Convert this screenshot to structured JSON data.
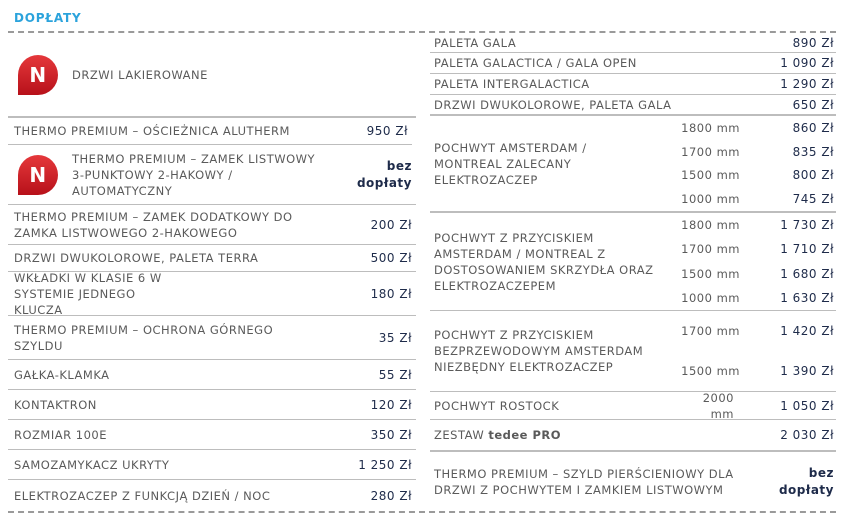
{
  "heading": "DOPŁATY",
  "left": [
    {
      "label": "DRZWI LAKIEROWANE",
      "icon": "N"
    },
    {
      "label": "THERMO PREMIUM – OŚCIEŻNICA ALUTHERM",
      "price": "950 Zł"
    },
    {
      "label": "THERMO PREMIUM – ZAMEK LISTWOWY 3-PUNKTOWY 2-HAKOWY / AUTOMATYCZNY",
      "icon": "N",
      "price": "bez dopłaty"
    },
    {
      "label": "THERMO PREMIUM – ZAMEK DODATKOWY DO ZAMKA LISTWOWEGO 2-HAKOWEGO",
      "price": "200 Zł"
    },
    {
      "label": "DRZWI DWUKOLOROWE, PALETA TERRA",
      "price": "500 Zł"
    },
    {
      "label": "WKŁADKI W KLASIE 6 W SYSTEMIE JEDNEGO KLUCZA",
      "price": "180 Zł"
    },
    {
      "label": "THERMO PREMIUM – OCHRONA GÓRNEGO SZYLDU",
      "price": "35 Zł"
    },
    {
      "label": "GAŁKA-KLAMKA",
      "price": "55 Zł"
    },
    {
      "label": "KONTAKTRON",
      "price": "120 Zł"
    },
    {
      "label": "ROZMIAR 100E",
      "price": "350 Zł"
    },
    {
      "label": "SAMOZAMYKACZ UKRYTY",
      "price": "1 250 Zł"
    },
    {
      "label": "ELEKTROZACZEP Z FUNKCJĄ DZIEŃ / NOC",
      "price": "280 Zł"
    }
  ],
  "right": [
    {
      "label": "PALETA GALA",
      "price": "890 Zł"
    },
    {
      "label": "PALETA GALACTICA / GALA OPEN",
      "price": "1 090 Zł"
    },
    {
      "label": "PALETA INTERGALACTICA",
      "price": "1 290 Zł"
    },
    {
      "label": "DRZWI DWUKOLOROWE, PALETA GALA",
      "price": "650 Zł"
    },
    {
      "label": "POCHWYT AMSTERDAM / MONTREAL ZALECANY ELEKTROZACZEP",
      "sizes": [
        {
          "mm": "1800 mm",
          "price": "860 Zł"
        },
        {
          "mm": "1700 mm",
          "price": "835 Zł"
        },
        {
          "mm": "1500 mm",
          "price": "800 Zł"
        },
        {
          "mm": "1000 mm",
          "price": "745 Zł"
        }
      ]
    },
    {
      "label": "POCHWYT Z PRZYCISKIEM AMSTERDAM / MONTREAL Z DOSTOSOWANIEM SKRZYDŁA ORAZ ELEKTROZACZEPEM",
      "sizes": [
        {
          "mm": "1800 mm",
          "price": "1 730 Zł"
        },
        {
          "mm": "1700 mm",
          "price": "1 710 Zł"
        },
        {
          "mm": "1500 mm",
          "price": "1 680 Zł"
        },
        {
          "mm": "1000 mm",
          "price": "1 630 Zł"
        }
      ]
    },
    {
      "label": "POCHWYT Z PRZYCISKIEM BEZPRZEWODOWYM AMSTERDAM NIEZBĘDNY ELEKTROZACZEP",
      "sizes": [
        {
          "mm": "1700 mm",
          "price": "1 420 Zł"
        },
        {
          "mm": "1500 mm",
          "price": "1 390 Zł"
        }
      ]
    },
    {
      "label": "POCHWYT ROSTOCK",
      "mm": "2000 mm",
      "price": "1 050 Zł"
    },
    {
      "label_prefix": "ZESTAW",
      "label_bold": "tedee PRO",
      "price": "2 030 Zł"
    },
    {
      "label": "THERMO PREMIUM – SZYLD PIERŚCIENIOWY DLA DRZWI Z POCHWYTEM I ZAMKIEM LISTWOWYM",
      "price": "bez dopłaty"
    }
  ]
}
